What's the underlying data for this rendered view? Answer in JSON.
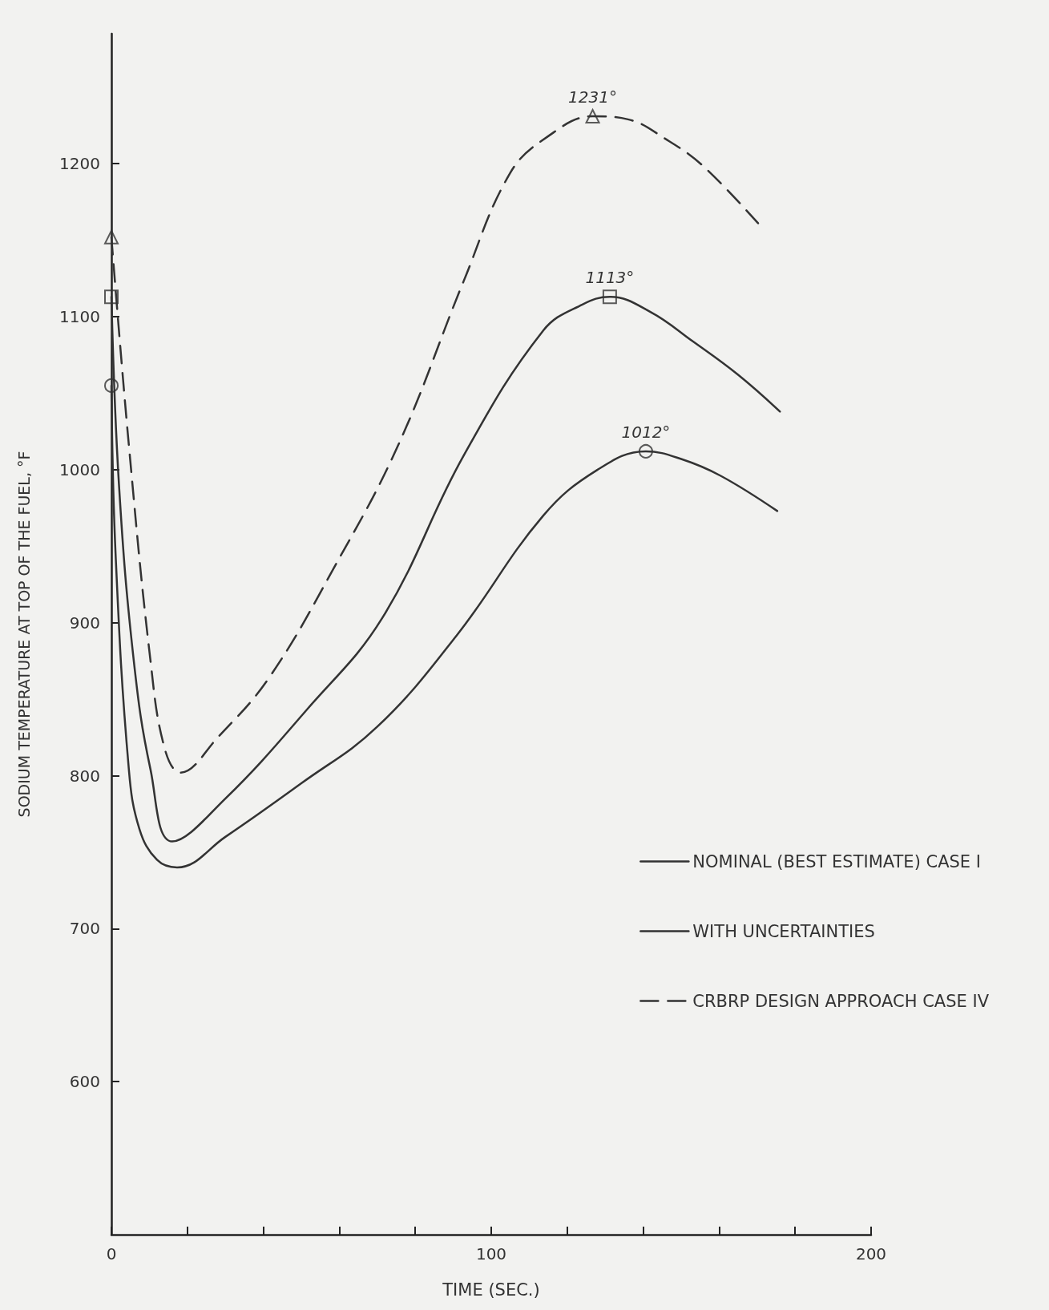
{
  "chart_data": {
    "type": "line",
    "xlabel": "TIME (SEC.)",
    "ylabel": "SODIUM TEMPERATURE AT TOP OF THE FUEL, °F",
    "xlim": [
      0,
      200
    ],
    "ylim": [
      500,
      1285
    ],
    "xticks": [
      0,
      {
        "value": 20,
        "label": null
      },
      {
        "value": 40,
        "label": null
      },
      {
        "value": 60,
        "label": null
      },
      {
        "value": 80,
        "label": null
      },
      100,
      {
        "value": 120,
        "label": null
      },
      {
        "value": 140,
        "label": null
      },
      {
        "value": 160,
        "label": null
      },
      {
        "value": 180,
        "label": null
      },
      200
    ],
    "yticks": [
      600,
      700,
      800,
      900,
      1000,
      1100,
      1200
    ],
    "grid": false,
    "legend": "bottom right",
    "series": [
      {
        "name": "NOMINAL (BEST ESTIMATE) CASE I",
        "color": "#333333",
        "line_style": "solid",
        "x": [
          0,
          1.1,
          4.6,
          7.4,
          12,
          17.3,
          30,
          50,
          70,
          91,
          113.7,
          128,
          140.7,
          150,
          160.4,
          175.3
        ],
        "values": [
          1055,
          945,
          804,
          765,
          745,
          740,
          760,
          795,
          832,
          892,
          970,
          1000,
          1012,
          1007,
          996,
          973
        ]
      },
      {
        "name": "WITH UNCERTAINTIES",
        "color": "#333333",
        "line_style": "solid",
        "x": [
          0,
          2,
          5.9,
          10.3,
          16,
          30,
          51.4,
          71.3,
          92.7,
          113.7,
          124,
          131.2,
          142,
          153,
          165,
          176
        ],
        "values": [
          1113,
          990,
          875,
          804,
          757,
          785,
          843,
          903,
          1009,
          1091,
          1108,
          1113,
          1103,
          1084,
          1062,
          1038
        ]
      },
      {
        "name": "CRBRP DESIGN APPROACH CASE IV",
        "color": "#333333",
        "line_style": "dashed",
        "x": [
          0,
          4.6,
          10.3,
          14,
          18.2,
          28,
          41.5,
          58.4,
          75.5,
          92.7,
          105,
          115,
          126.7,
          136,
          146,
          156,
          171.7
        ],
        "values": [
          1152,
          1016,
          875,
          818,
          802,
          825,
          864,
          935,
          1016,
          1123,
          1194,
          1218,
          1231,
          1229,
          1216,
          1198,
          1157
        ]
      },
      {
        "type": "scatter",
        "color": "#333333",
        "marker": "circle",
        "x": [
          0,
          140.7
        ],
        "values": [
          1055,
          1012
        ]
      },
      {
        "type": "scatter",
        "color": "#333333",
        "marker": "square",
        "x": [
          0,
          131.2
        ],
        "values": [
          1113,
          1113
        ]
      },
      {
        "type": "scatter",
        "color": "#333333",
        "marker": "triangle",
        "x": [
          0,
          126.7
        ],
        "values": [
          1152,
          1231
        ]
      }
    ],
    "annotations": [
      {
        "text": "1012°",
        "x": 140.7,
        "y": 1012
      },
      {
        "text": "1113°",
        "x": 131.2,
        "y": 1113
      },
      {
        "text": "1231°",
        "x": 126.7,
        "y": 1231
      }
    ]
  }
}
